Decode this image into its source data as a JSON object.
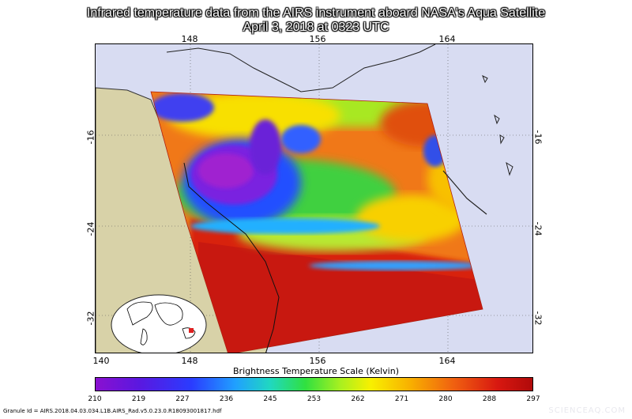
{
  "title": {
    "line1": "Infrared temperature data from the AIRS instrument aboard NASA's Aqua Satellite",
    "line2": "April 3, 2018 at 0323 UTC"
  },
  "map": {
    "lon_ticks_top": [
      "148",
      "156",
      "164"
    ],
    "lon_ticks_bottom": [
      "140",
      "148",
      "156",
      "164"
    ],
    "lat_ticks": [
      "-16",
      "-24",
      "-32"
    ],
    "colors": {
      "land": "#d8d2a8",
      "ocean": "#d8dcf2",
      "swath_edge": "#c02010"
    }
  },
  "colorbar": {
    "title": "Brightness Temperature Scale (Kelvin)",
    "labels": [
      "210",
      "219",
      "227",
      "236",
      "245",
      "253",
      "262",
      "271",
      "280",
      "288",
      "297"
    ],
    "min": 210,
    "max": 297
  },
  "granule": "Granule Id = AIRS.2018.04.03.034.L1B.AIRS_Rad.v5.0.23.0.R18093001817.hdf",
  "watermark": "SCIENCEAQ.COM"
}
